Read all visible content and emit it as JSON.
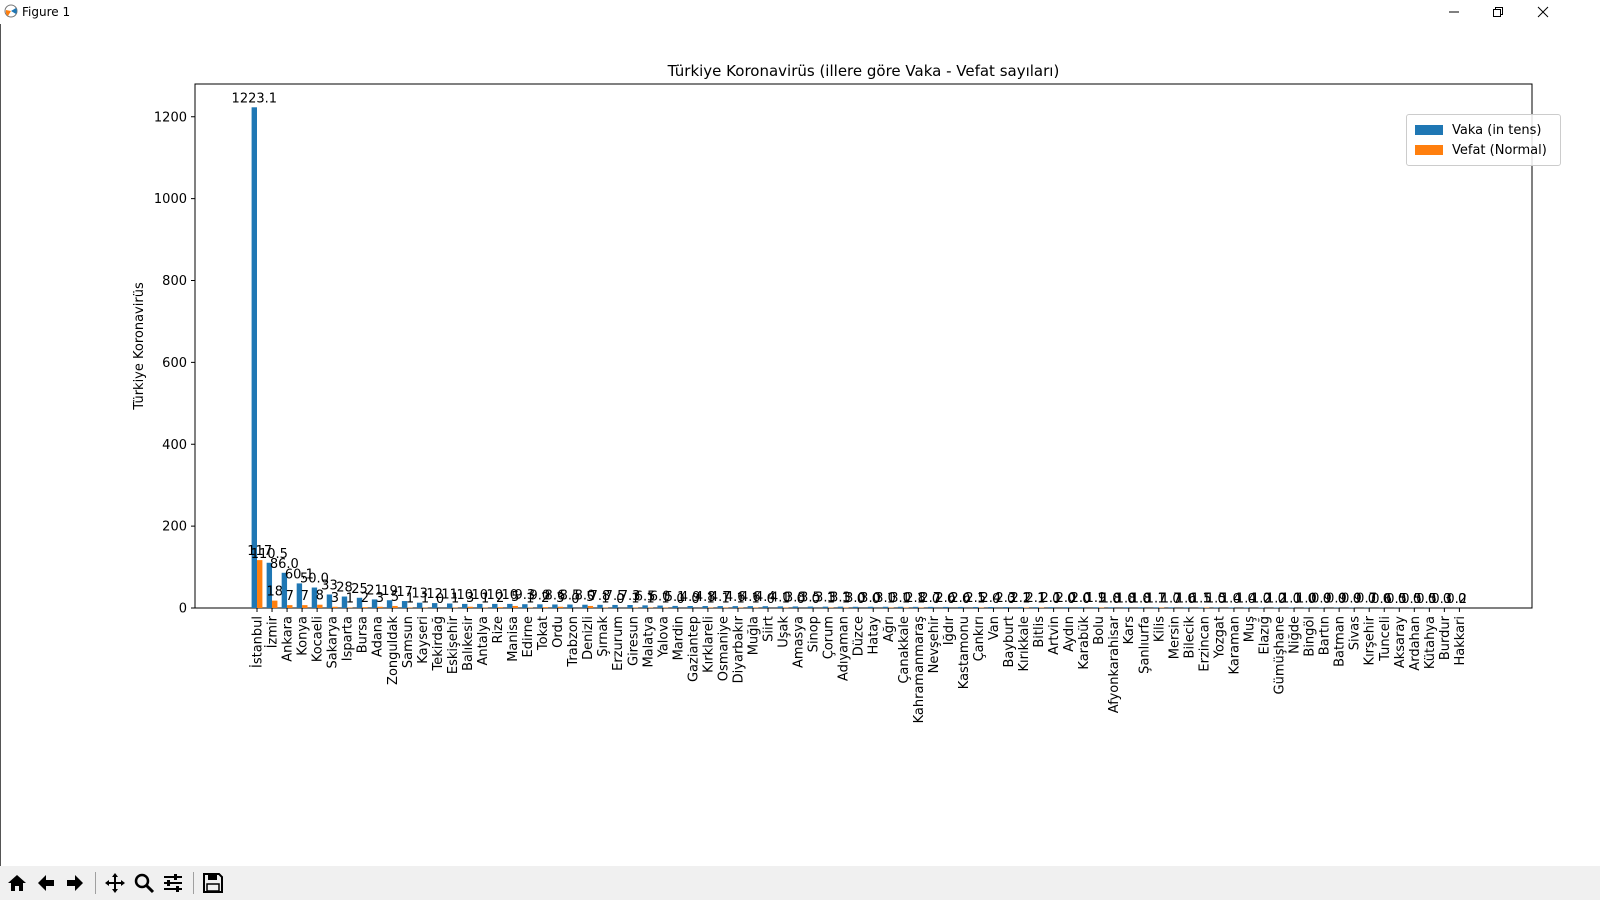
{
  "window": {
    "title": "Figure 1",
    "minimize_icon": "minimize-icon",
    "maximize_icon": "restore-icon",
    "close_icon": "close-icon"
  },
  "toolbar": {
    "buttons": [
      {
        "name": "home-icon"
      },
      {
        "name": "back-arrow-icon"
      },
      {
        "name": "forward-arrow-icon"
      },
      {
        "name": "pan-icon"
      },
      {
        "name": "zoom-icon"
      },
      {
        "name": "configure-subplots-icon"
      },
      {
        "name": "save-icon"
      }
    ]
  },
  "chart_data": {
    "type": "bar",
    "title": "Türkiye Koronavirüs (illere göre Vaka - Vefat sayıları)",
    "xlabel": "",
    "ylabel": "Türkiye Koronavirüs",
    "ylim": [
      0,
      1280
    ],
    "yticks": [
      0,
      200,
      400,
      600,
      800,
      1000,
      1200
    ],
    "grid": false,
    "legend_position": "top-right",
    "categories": [
      "İstanbul",
      "İzmir",
      "Ankara",
      "Konya",
      "Kocaeli",
      "Sakarya",
      "Isparta",
      "Bursa",
      "Adana",
      "Zonguldak",
      "Samsun",
      "Kayseri",
      "Tekirdağ",
      "Eskişehir",
      "Balıkesir",
      "Antalya",
      "Rize",
      "Manisa",
      "Edirne",
      "Tokat",
      "Ordu",
      "Trabzon",
      "Denizli",
      "Şırnak",
      "Erzurum",
      "Giresun",
      "Malatya",
      "Yalova",
      "Mardin",
      "Gaziantep",
      "Kırklareli",
      "Osmaniye",
      "Diyarbakır",
      "Muğla",
      "Siirt",
      "Uşak",
      "Amasya",
      "Sinop",
      "Çorum",
      "Adıyaman",
      "Düzce",
      "Hatay",
      "Ağrı",
      "Çanakkale",
      "Kahramanmaraş",
      "Nevşehir",
      "Iğdır",
      "Kastamonu",
      "Çankırı",
      "Van",
      "Bayburt",
      "Kırıkkale",
      "Bitlis",
      "Artvin",
      "Aydın",
      "Karabük",
      "Bolu",
      "Afyonkarahisar",
      "Kars",
      "Şanlıurfa",
      "Kilis",
      "Mersin",
      "Bilecik",
      "Erzincan",
      "Yozgat",
      "Karaman",
      "Muş",
      "Elazığ",
      "Gümüşhane",
      "Niğde",
      "Bingöl",
      "Bartın",
      "Batman",
      "Sivas",
      "Kırşehir",
      "Tunceli",
      "Aksaray",
      "Ardahan",
      "Kütahya",
      "Burdur",
      "Hakkari"
    ],
    "series": [
      {
        "name": "Vaka (in tens)",
        "color": "#1f77b4",
        "values": [
          1223.1,
          110.5,
          86.0,
          60.1,
          50.0,
          33.0,
          28.0,
          25.0,
          21.0,
          19.0,
          17.0,
          13.0,
          12.0,
          11.0,
          10.0,
          10.0,
          10.0,
          10.0,
          9.3,
          9.0,
          8.6,
          8.5,
          8.0,
          7.8,
          7.5,
          7.3,
          6.5,
          6.0,
          5.1,
          4.9,
          4.8,
          4.7,
          4.6,
          4.6,
          4.4,
          4.0,
          3.8,
          3.5,
          3.3,
          3.3,
          3.0,
          3.0,
          3.0,
          3.0,
          2.8,
          2.7,
          2.6,
          2.6,
          2.5,
          2.4,
          2.3,
          2.2,
          2.1,
          2.1,
          2.0,
          2.0,
          1.9,
          1.8,
          1.8,
          1.8,
          1.7,
          1.7,
          1.6,
          1.5,
          1.5,
          1.4,
          1.4,
          1.2,
          1.2,
          1.1,
          1.0,
          0.9,
          0.9,
          0.9,
          0.7,
          0.6,
          0.5,
          0.5,
          0.5,
          0.3,
          0.2
        ],
        "labels": [
          "1223.1",
          "110.5",
          "86.0",
          "60.1",
          "50.0",
          "33",
          "28",
          "25",
          "21",
          "19",
          "17",
          "13",
          "12",
          "11",
          "10",
          "10",
          "10",
          "10",
          "9.3",
          "9.0",
          "8.6",
          "8.5",
          "8.0",
          "7.8",
          "7.5",
          "7.3",
          "6.5",
          "6.0",
          "5.1",
          "4.9",
          "4.8",
          "4.7",
          "4.6",
          "4.6",
          "4.4",
          "4.0",
          "3.8",
          "3.5",
          "3.3",
          "3.3",
          "3.0",
          "3.0",
          "3.0",
          "3.0",
          "2.8",
          "2.7",
          "2.6",
          "2.6",
          "2.5",
          "2.4",
          "2.3",
          "2.2",
          "2.1",
          "2.1",
          "2.0",
          "2.0",
          "1.9",
          "1.8",
          "1.8",
          "1.8",
          "1.7",
          "1.7",
          "1.6",
          "1.5",
          "1.5",
          "1.4",
          "1.4",
          "1.2",
          "1.2",
          "1.1",
          "1.0",
          "0.9",
          "0.9",
          "0.9",
          "0.7",
          "0.6",
          "0.5",
          "0.5",
          "0.5",
          "0.3",
          "0.2"
        ]
      },
      {
        "name": "Vefat (Normal)",
        "color": "#ff7f0e",
        "values": [
          117,
          18,
          7,
          7,
          8,
          3,
          1,
          2,
          3,
          5,
          1,
          1,
          0,
          1,
          3,
          1,
          2,
          5,
          1,
          2,
          3,
          0,
          5,
          1,
          0,
          1,
          1,
          1,
          0,
          0,
          1,
          1,
          1,
          1,
          0,
          1,
          0,
          0,
          1,
          1,
          0,
          0,
          1,
          1,
          1,
          0,
          0,
          0,
          1,
          0,
          0,
          1,
          1,
          0,
          0,
          0,
          1,
          0,
          0,
          0,
          1,
          0,
          0,
          1,
          0,
          0,
          0,
          0,
          0,
          0,
          0,
          0,
          0,
          0,
          0,
          0,
          0,
          0,
          0,
          0,
          0
        ],
        "labels": [
          "117",
          "18",
          "7",
          "7",
          "8",
          "3",
          "1",
          "2",
          "3",
          "5",
          "1",
          "1",
          "0",
          "1",
          "3",
          "1",
          "2",
          "5",
          "1",
          "2",
          "3",
          "0",
          "5",
          "1",
          "0",
          "1",
          "1",
          "1",
          "0",
          "0",
          "1",
          "1",
          "1",
          "1",
          "0",
          "1",
          "0",
          "0",
          "1",
          "1",
          "0",
          "0",
          "1",
          "1",
          "1",
          "0",
          "0",
          "0",
          "1",
          "0",
          "0",
          "1",
          "1",
          "0",
          "0",
          "0",
          "1",
          "0",
          "0",
          "0",
          "1",
          "0",
          "0",
          "1",
          "0",
          "0",
          "0",
          "0",
          "0",
          "0",
          "0",
          "0",
          "0",
          "0",
          "0",
          "0",
          "0",
          "0",
          "0",
          "0",
          "0"
        ]
      }
    ]
  }
}
